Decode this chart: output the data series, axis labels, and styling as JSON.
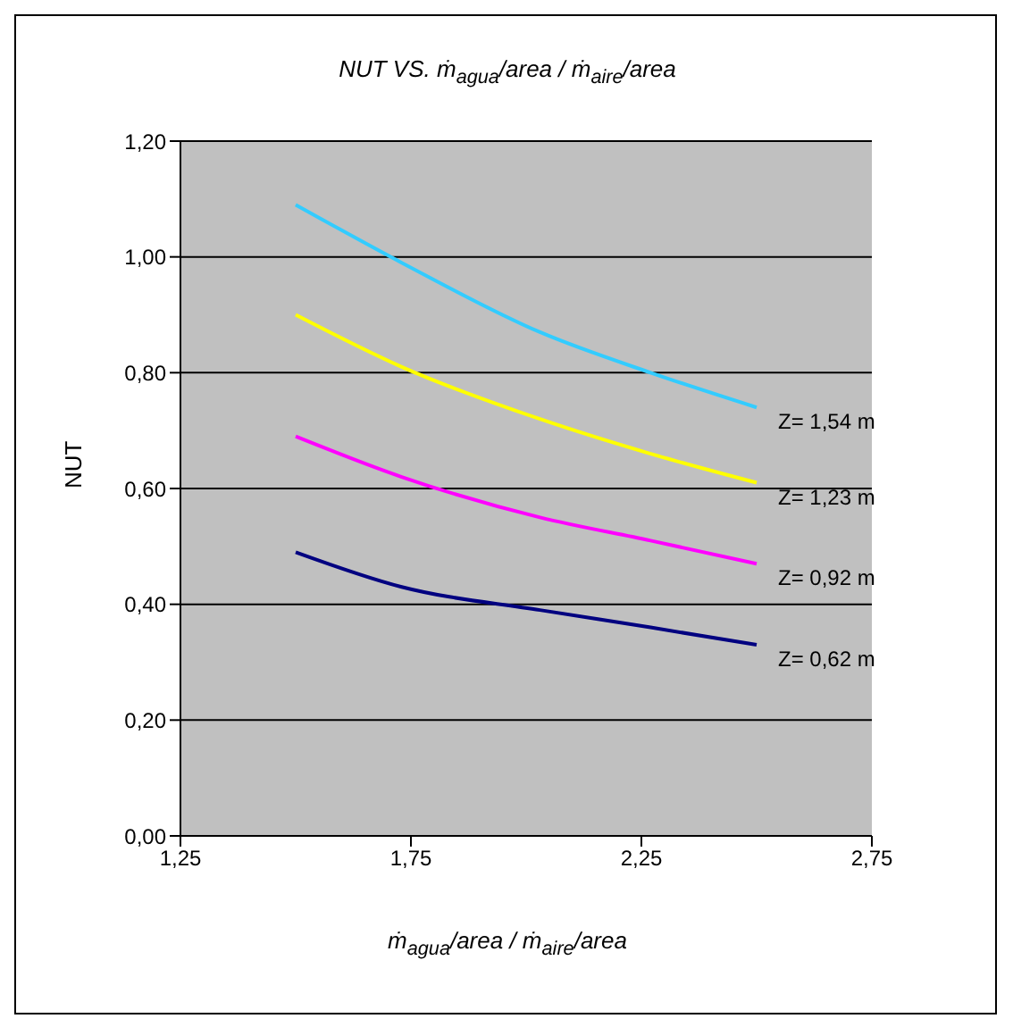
{
  "chart_data": {
    "type": "line",
    "title": "NUT VS. ṁ$_{agua}$/area / ṁ$_{aire}$/area",
    "xlabel": "ṁ$_{agua}$/area / ṁ$_{aire}$/area",
    "ylabel": "NUT",
    "xlim": [
      1.25,
      2.75
    ],
    "xticks": [
      {
        "value": 1.25,
        "label": "1,25"
      },
      {
        "value": 1.75,
        "label": "1,75"
      },
      {
        "value": 2.25,
        "label": "2,25"
      },
      {
        "value": 2.75,
        "label": "2,75"
      }
    ],
    "ylim": [
      0,
      1.2
    ],
    "yticks": [
      {
        "value": 0,
        "label": "0,00"
      },
      {
        "value": 0.2,
        "label": "0,20"
      },
      {
        "value": 0.4,
        "label": "0,40"
      },
      {
        "value": 0.6,
        "label": "0,60"
      },
      {
        "value": 0.8,
        "label": "0,80"
      },
      {
        "value": 1,
        "label": "1,00"
      },
      {
        "value": 1.2,
        "label": "1,20"
      }
    ],
    "x": [
      1.5,
      1.73,
      2.03,
      2.27,
      2.5
    ],
    "series": [
      {
        "name": "Z= 1,54 m",
        "color": "#33ccff",
        "values": [
          1.09,
          0.99,
          0.87,
          0.8,
          0.74
        ]
      },
      {
        "name": "Z= 1,23 m",
        "color": "#ffff00",
        "values": [
          0.9,
          0.81,
          0.72,
          0.66,
          0.61
        ]
      },
      {
        "name": "Z= 0,92 m",
        "color": "#ff00ff",
        "values": [
          0.69,
          0.62,
          0.55,
          0.51,
          0.47
        ]
      },
      {
        "name": "Z= 0,62 m",
        "color": "#000080",
        "values": [
          0.49,
          0.43,
          0.39,
          0.36,
          0.33
        ]
      }
    ],
    "grid": "y",
    "marker": "none",
    "line_style": "solid"
  }
}
